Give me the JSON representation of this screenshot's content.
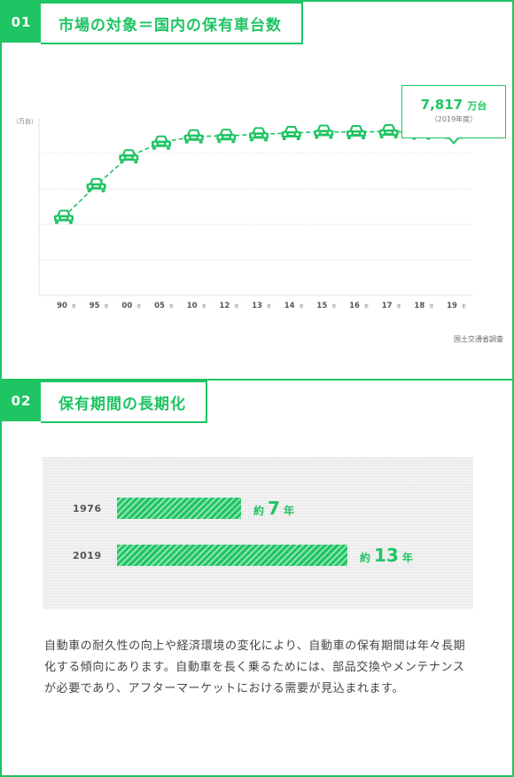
{
  "section1": {
    "number": "01",
    "title": "市場の対象＝国内の保有車台数",
    "source": "国土交通省調査",
    "callout": {
      "value": "7,817",
      "unit": "万台",
      "note": "（2019年度）"
    }
  },
  "chart_data": {
    "type": "line",
    "ylabel": "（万台）",
    "marker": "car-icon",
    "x": [
      "90",
      "95",
      "00",
      "05",
      "10",
      "12",
      "13",
      "14",
      "15",
      "16",
      "17",
      "18",
      "19"
    ],
    "x_suffix": "年",
    "values": [
      5780,
      6540,
      7230,
      7560,
      7710,
      7720,
      7760,
      7790,
      7820,
      7810,
      7830,
      7800,
      7817
    ],
    "ylim": [
      3900,
      8150
    ],
    "grid": true,
    "color": "#1fc463"
  },
  "section2": {
    "number": "02",
    "title": "保有期間の長期化",
    "bars": [
      {
        "year": "1976",
        "prefix": "約",
        "value": 7,
        "suffix": "年"
      },
      {
        "year": "2019",
        "prefix": "約",
        "value": 13,
        "suffix": "年"
      }
    ],
    "max_value": 13,
    "description": "自動車の耐久性の向上や経済環境の変化により、自動車の保有期間は年々長期化する傾向にあります。自動車を長く乗るためには、部品交換やメンテナンスが必要であり、アフターマーケットにおける需要が見込まれます。"
  },
  "colors": {
    "accent": "#1fc463",
    "text": "#444444",
    "muted": "#777777"
  }
}
